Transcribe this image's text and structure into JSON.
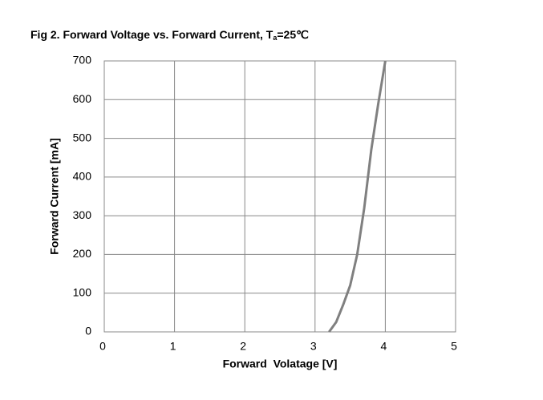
{
  "chart_data": {
    "type": "line",
    "title": "Fig 2. Forward Voltage vs. Forward Current, T",
    "title_subscript": "a",
    "title_suffix": "=25℃",
    "x_label": "Forward  Volatage [V]",
    "y_label": "Forward Current [mA]",
    "x": [
      3.2,
      3.3,
      3.4,
      3.5,
      3.6,
      3.7,
      3.8,
      3.9,
      4.0
    ],
    "series": [
      {
        "color": "#808080",
        "values": [
          0,
          25,
          70,
          120,
          200,
          320,
          470,
          590,
          700
        ]
      }
    ],
    "xlim": [
      0,
      5
    ],
    "xticks": [
      0,
      1,
      2,
      3,
      4,
      5
    ],
    "ylim": [
      0,
      700
    ],
    "yticks": [
      0,
      100,
      200,
      300,
      400,
      500,
      600,
      700
    ],
    "grid": true
  }
}
